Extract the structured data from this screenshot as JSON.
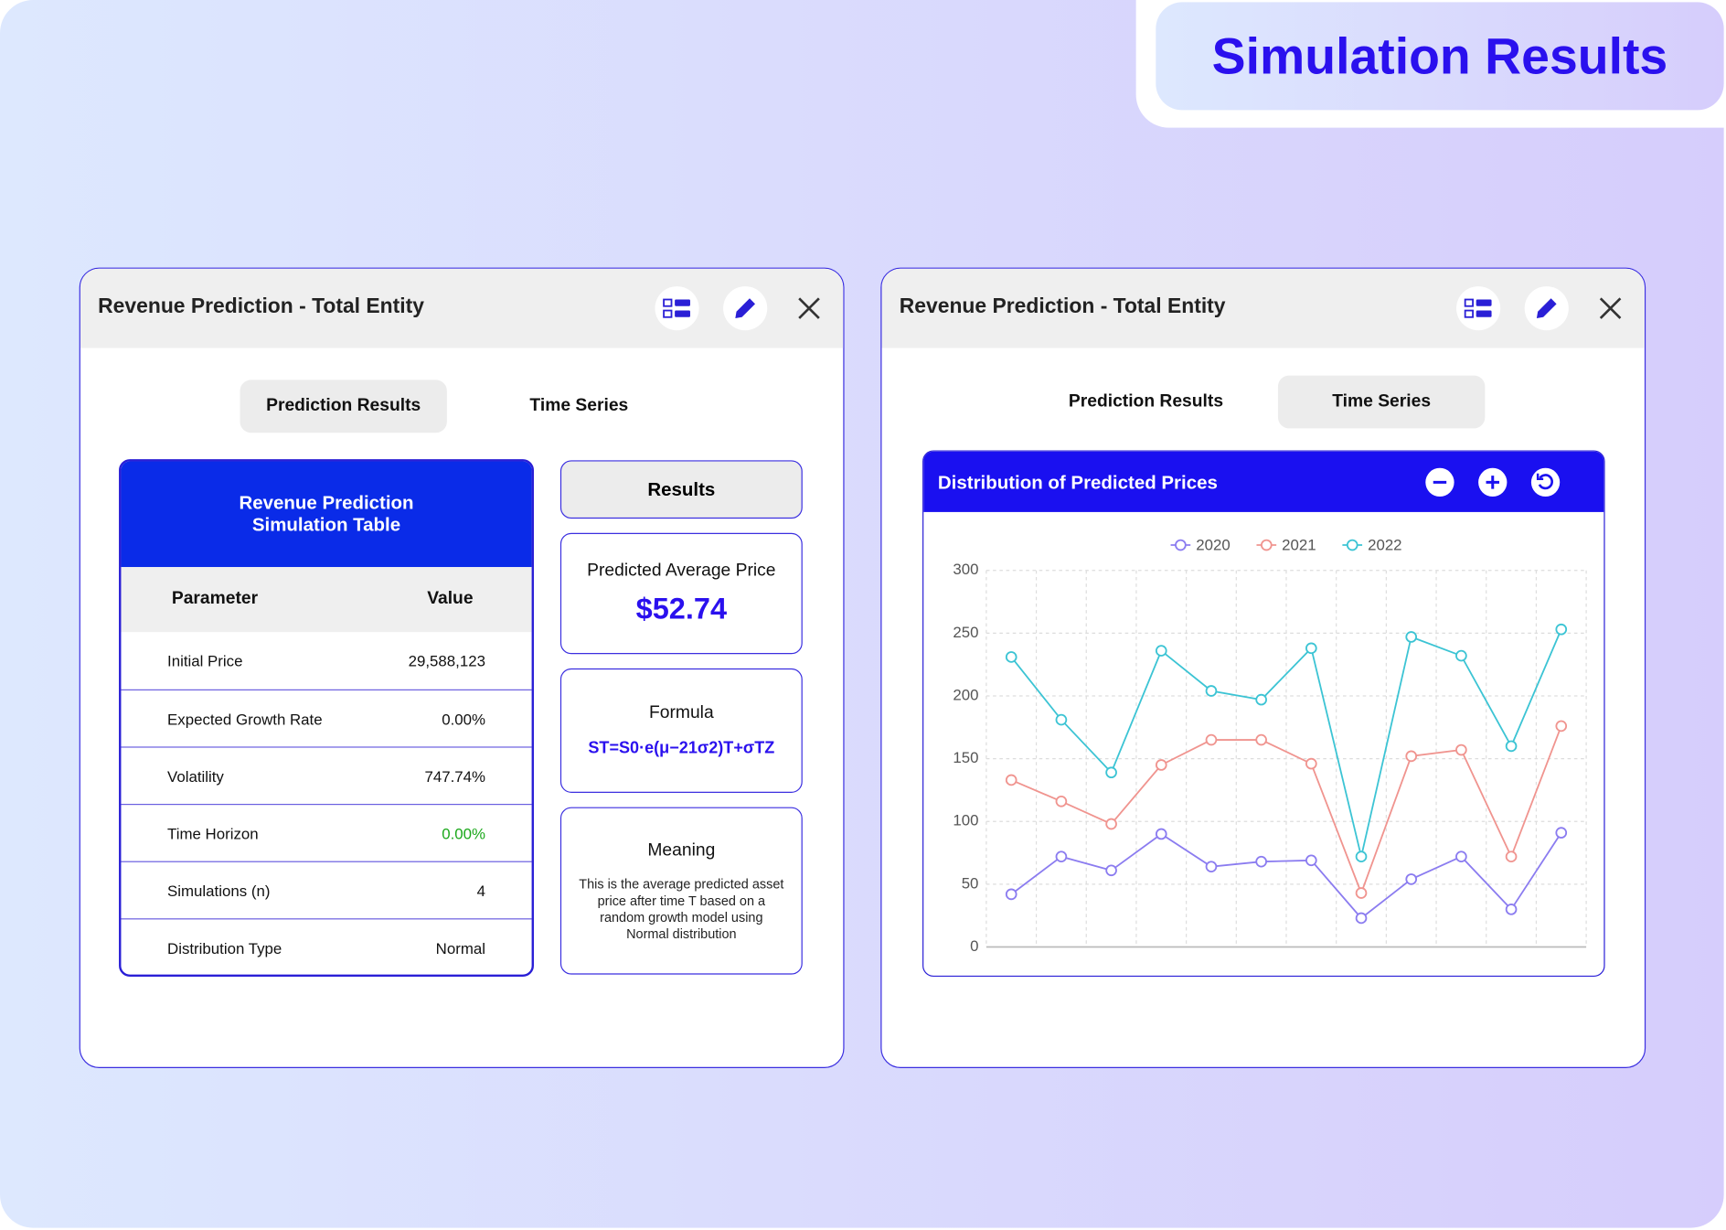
{
  "header": {
    "title": "Simulation Results"
  },
  "left_panel": {
    "title": "Revenue Prediction - Total Entity",
    "tabs": [
      "Prediction Results",
      "Time Series"
    ],
    "table": {
      "title": "Revenue Prediction Simulation Table",
      "columns": [
        "Parameter",
        "Value"
      ],
      "rows": [
        [
          "Initial Price",
          "29,588,123"
        ],
        [
          "Expected Growth Rate",
          "0.00%"
        ],
        [
          "Volatility",
          "747.74%"
        ],
        [
          "Time Horizon",
          "0.00%"
        ],
        [
          "Simulations (n)",
          "4"
        ],
        [
          "Distribution Type",
          "Normal"
        ]
      ]
    },
    "results": {
      "title": "Results",
      "average": {
        "label": "Predicted Average Price",
        "value": "$52.74"
      },
      "formula": {
        "label": "Formula",
        "value": "ST=S0·e(μ−21σ2)T+σTZ"
      },
      "meaning": {
        "label": "Meaning",
        "text": "This is the average predicted asset price after time T based on a random growth model using Normal distribution"
      }
    }
  },
  "right_panel": {
    "title": "Revenue Prediction - Total Entity",
    "tabs": [
      "Prediction Results",
      "Time Series"
    ]
  },
  "chart_data": {
    "type": "line",
    "title": "Distribution of Predicted Prices",
    "categories": [
      null,
      null,
      null,
      null,
      null,
      null,
      null,
      null,
      null,
      null,
      null,
      null
    ],
    "series": [
      {
        "name": "2020",
        "color": "#8b7cf0",
        "values": [
          42,
          72,
          61,
          90,
          64,
          68,
          69,
          23,
          54,
          72,
          30,
          91
        ]
      },
      {
        "name": "2021",
        "color": "#f0948f",
        "values": [
          133,
          116,
          98,
          145,
          165,
          165,
          146,
          43,
          152,
          157,
          72,
          176
        ]
      },
      {
        "name": "2022",
        "color": "#3cc4d4",
        "values": [
          231,
          181,
          139,
          236,
          204,
          197,
          238,
          72,
          247,
          232,
          160,
          253
        ]
      }
    ],
    "ylim": [
      0,
      300
    ],
    "yticks": [
      0,
      50,
      100,
      150,
      200,
      250,
      300
    ],
    "grid": true,
    "legend": "top"
  }
}
